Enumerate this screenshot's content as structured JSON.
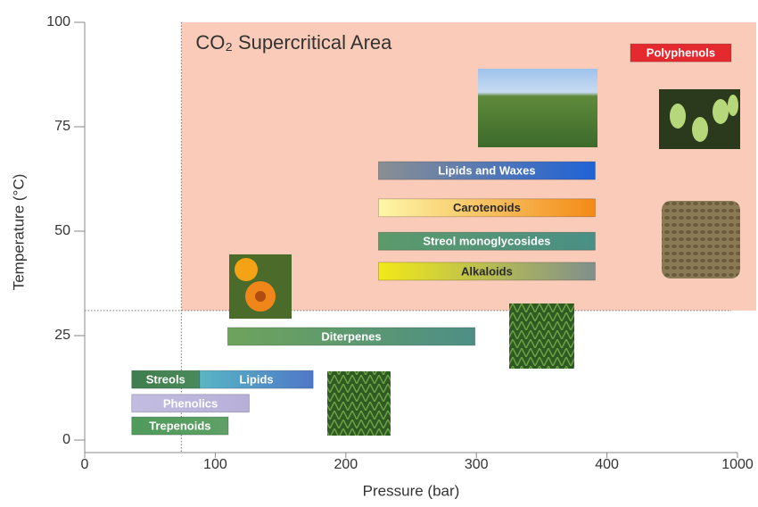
{
  "chart_data": {
    "type": "range-bar",
    "xlabel": "Pressure (bar)",
    "ylabel": "Temperature (°C)",
    "xticks": [
      0,
      100,
      200,
      300,
      400,
      1000
    ],
    "xlim": [
      0,
      1000
    ],
    "yticks": [
      0,
      25,
      50,
      75,
      100
    ],
    "ylim": [
      0,
      100
    ],
    "region": {
      "label": "CO₂ Supercritical Area",
      "x": 74,
      "y": 31,
      "color": "#f9cbb8"
    },
    "bars": [
      {
        "name": "Polyphenols",
        "x": [
          508,
          971
        ],
        "y": 92.7,
        "colors": [
          "#e52a2f",
          "#e52a2f"
        ],
        "text_color": "#ffffff"
      },
      {
        "name": "Lipids and Waxes",
        "x": [
          225,
          391
        ],
        "y": 64.5,
        "colors": [
          "#8a8f93",
          "#1f62d6"
        ],
        "text_color": "#ffffff"
      },
      {
        "name": "Carotenoids",
        "x": [
          225,
          391
        ],
        "y": 55.6,
        "colors": [
          "#fdf7a8",
          "#f38a17"
        ],
        "text_color": "#2a2a2a"
      },
      {
        "name": "Streol monoglycosides",
        "x": [
          225,
          391
        ],
        "y": 47.6,
        "colors": [
          "#5c9a6a",
          "#4a8f86"
        ],
        "text_color": "#ffffff"
      },
      {
        "name": "Alkaloids",
        "x": [
          225,
          391
        ],
        "y": 40.4,
        "colors": [
          "#f2ea18",
          "#7f8f8c"
        ],
        "text_color": "#2a2a2a"
      },
      {
        "name": "Diterpenes",
        "x": [
          109.5,
          299
        ],
        "y": 24.8,
        "colors": [
          "#6ea35b",
          "#4d8f86"
        ],
        "text_color": "#ffffff"
      },
      {
        "name": "Streols",
        "x": [
          36,
          88
        ],
        "y": 14.5,
        "colors": [
          "#3f7d4e",
          "#4a8a5a"
        ],
        "text_color": "#ffffff"
      },
      {
        "name": "Lipids",
        "x": [
          88,
          175
        ],
        "y": 14.5,
        "colors": [
          "#58b6c4",
          "#4f78c8"
        ],
        "text_color": "#ffffff"
      },
      {
        "name": "Phenolics",
        "x": [
          36,
          126
        ],
        "y": 8.8,
        "colors": [
          "#c2bde0",
          "#b7afd8"
        ],
        "text_color": "#ffffff"
      },
      {
        "name": "Trepenoids",
        "x": [
          36,
          110
        ],
        "y": 3.4,
        "colors": [
          "#4f9a5c",
          "#5fa066"
        ],
        "text_color": "#ffffff"
      }
    ]
  }
}
